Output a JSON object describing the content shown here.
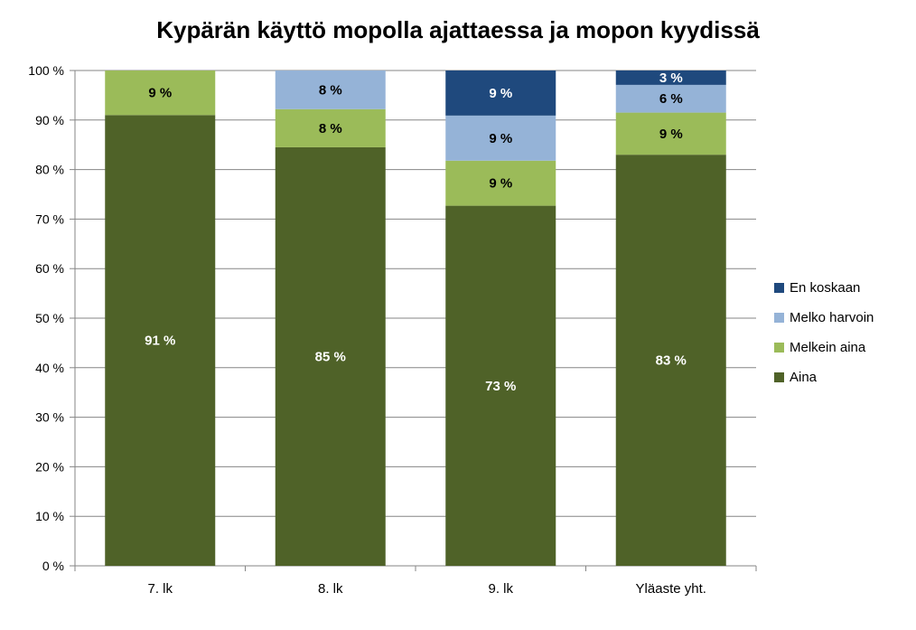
{
  "chart_data": {
    "type": "bar",
    "stacked": true,
    "title": "Kypärän käyttö mopolla ajattaessa ja mopon kyydissä",
    "categories": [
      "7. lk",
      "8. lk",
      "9. lk",
      "Yläaste yht."
    ],
    "series": [
      {
        "name": "Aina",
        "color": "#4f6228",
        "values": [
          91,
          84.5,
          72.7,
          83
        ],
        "labels": [
          "91 %",
          "85 %",
          "73 %",
          "83 %"
        ],
        "label_color": "#ffffff"
      },
      {
        "name": "Melkein aina",
        "color": "#9bbb59",
        "values": [
          9,
          7.7,
          9.1,
          8.5
        ],
        "labels": [
          "9 %",
          "8 %",
          "9 %",
          "9 %"
        ],
        "label_color": "#000000"
      },
      {
        "name": "Melko harvoin",
        "color": "#95b3d7",
        "values": [
          0,
          7.8,
          9.1,
          5.6
        ],
        "labels": [
          "",
          "8 %",
          "9 %",
          "6 %"
        ],
        "label_color": "#000000"
      },
      {
        "name": "En koskaan",
        "color": "#1f497d",
        "values": [
          0,
          0,
          9.1,
          2.9
        ],
        "labels": [
          "",
          "",
          "9 %",
          "3 %"
        ],
        "label_color": "#ffffff"
      }
    ],
    "yticks": [
      "0 %",
      "10 %",
      "20 %",
      "30 %",
      "40 %",
      "50 %",
      "60 %",
      "70 %",
      "80 %",
      "90 %",
      "100 %"
    ],
    "ylim": [
      0,
      100
    ],
    "grid": true,
    "legend_position": "right"
  }
}
